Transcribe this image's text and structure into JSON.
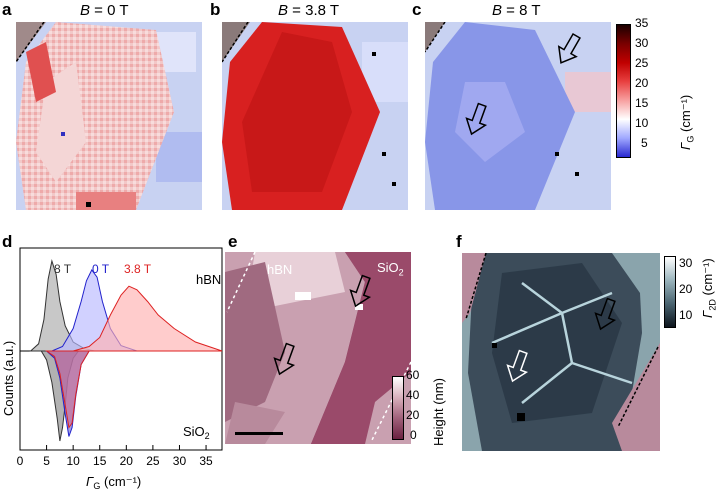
{
  "panels": {
    "a": {
      "label": "a",
      "b_prefix": "B",
      "b_value": " = 0 T"
    },
    "b": {
      "label": "b",
      "b_prefix": "B",
      "b_value": " = 3.8 T"
    },
    "c": {
      "label": "c",
      "b_prefix": "B",
      "b_value": " = 8 T"
    },
    "d": {
      "label": "d"
    },
    "e": {
      "label": "e",
      "hbn": "hBN",
      "sio2": "SiO",
      "sio2_sub": "2"
    },
    "f": {
      "label": "f"
    }
  },
  "colorbar_gamma_g": {
    "ticks": [
      "35",
      "30",
      "25",
      "20",
      "15",
      "10",
      "5"
    ],
    "label": "Γ",
    "label_sub": "G",
    "label_unit": " (cm⁻¹)",
    "colors": [
      "#1b0000",
      "#7a0000",
      "#c00000",
      "#e84040",
      "#f7a0a0",
      "#ffffff",
      "#a0a8ff",
      "#2828d0"
    ]
  },
  "colorbar_height": {
    "ticks": [
      "60",
      "40",
      "20",
      "0"
    ],
    "label": "Height (nm)",
    "colors": [
      "#ffffff",
      "#d8b0bc",
      "#a0607a",
      "#6a2040"
    ]
  },
  "colorbar_gamma_2d": {
    "ticks": [
      "30",
      "20",
      "10"
    ],
    "label": "Γ",
    "label_sub": "2D",
    "label_unit": " (cm⁻¹)",
    "colors": [
      "#ffffff",
      "#9ab4bc",
      "#4a6470",
      "#0c141c"
    ]
  },
  "chart_data": {
    "type": "area",
    "xlabel": "Γ",
    "xlabel_sub": "G",
    "xlabel_unit": " (cm⁻¹)",
    "ylabel": "Counts (a.u.)",
    "xlim": [
      0,
      38
    ],
    "xticks": [
      "0",
      "5",
      "10",
      "15",
      "20",
      "25",
      "30",
      "35"
    ],
    "legend_top": "hBN",
    "legend_bottom": "SiO",
    "legend_bottom_sub": "2",
    "series": [
      {
        "name": "8 T",
        "color": "#333333",
        "fill": "#aaaaaa",
        "panel": "hBN",
        "x": [
          2,
          3.5,
          4.5,
          5.3,
          6,
          6.8,
          7.5,
          8.5,
          10,
          12,
          14
        ],
        "y": [
          0,
          0.08,
          0.35,
          0.8,
          1.0,
          0.85,
          0.55,
          0.28,
          0.1,
          0.03,
          0
        ]
      },
      {
        "name": "0 T",
        "color": "#2222cc",
        "fill": "#b8b8ff",
        "panel": "hBN",
        "x": [
          6,
          8,
          10,
          11.5,
          12.5,
          13.5,
          14.5,
          15.5,
          17,
          19,
          22
        ],
        "y": [
          0,
          0.05,
          0.25,
          0.55,
          0.78,
          0.9,
          0.82,
          0.55,
          0.25,
          0.06,
          0
        ]
      },
      {
        "name": "3.8 T",
        "color": "#dd2222",
        "fill": "#ffb0b0",
        "panel": "hBN",
        "x": [
          10,
          13,
          15,
          17,
          19,
          20.5,
          22,
          24,
          26,
          29,
          33,
          36,
          38
        ],
        "y": [
          0,
          0.05,
          0.15,
          0.4,
          0.62,
          0.72,
          0.68,
          0.55,
          0.4,
          0.25,
          0.1,
          0.04,
          0
        ]
      },
      {
        "name": "8 T",
        "color": "#333333",
        "fill": "#888888",
        "panel": "SiO2",
        "x": [
          4,
          5,
          6,
          7,
          7.5,
          8,
          8.5,
          9,
          10,
          11
        ],
        "y": [
          0,
          0.1,
          0.35,
          0.75,
          1.0,
          0.85,
          0.6,
          0.3,
          0.08,
          0
        ]
      },
      {
        "name": "0 T",
        "color": "#2222cc",
        "fill": "#7070d8",
        "panel": "SiO2",
        "x": [
          5,
          6.5,
          7.5,
          8.5,
          9.2,
          9.8,
          10.5,
          11.5,
          13
        ],
        "y": [
          0,
          0.08,
          0.3,
          0.7,
          0.95,
          0.85,
          0.5,
          0.15,
          0
        ]
      },
      {
        "name": "3.8 T",
        "color": "#dd2222",
        "fill": "#d07090",
        "panel": "SiO2",
        "x": [
          5,
          6.5,
          7.5,
          8.5,
          9.2,
          9.8,
          10.5,
          11.5,
          13
        ],
        "y": [
          0,
          0.06,
          0.25,
          0.6,
          0.85,
          0.8,
          0.48,
          0.15,
          0
        ]
      }
    ]
  }
}
